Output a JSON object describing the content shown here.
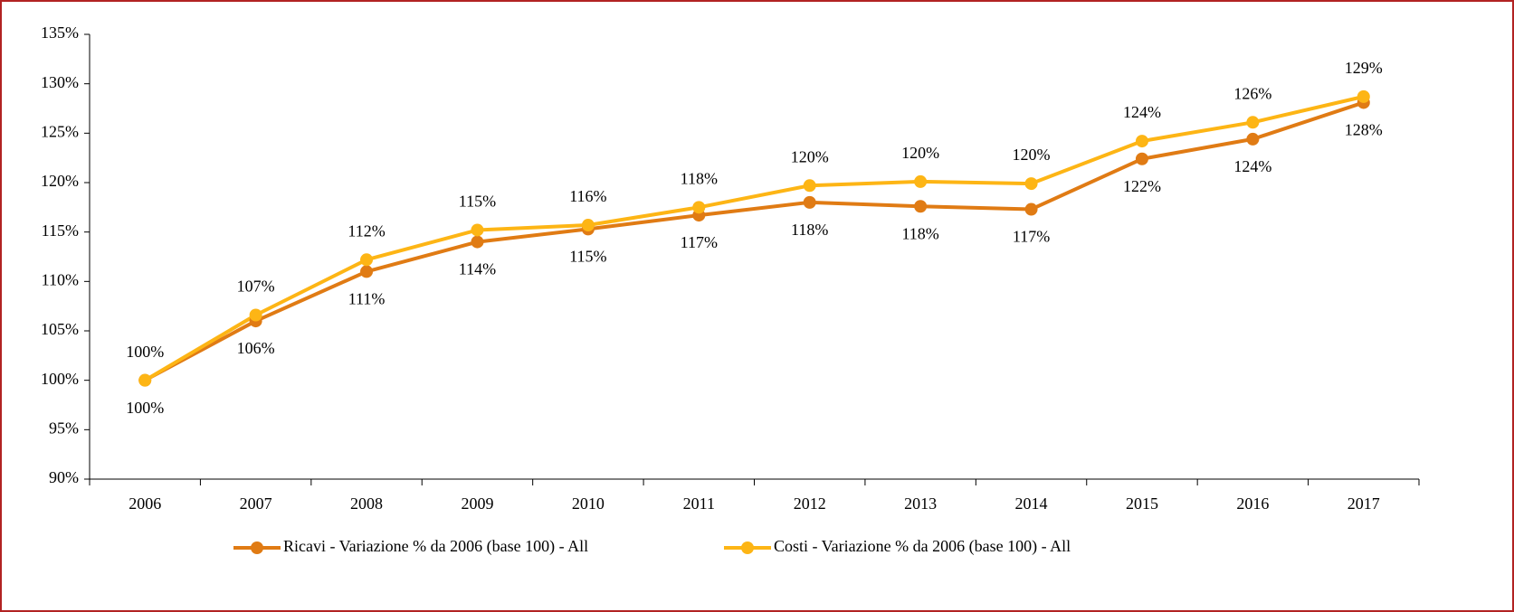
{
  "chart_data": {
    "type": "line",
    "categories": [
      "2006",
      "2007",
      "2008",
      "2009",
      "2010",
      "2011",
      "2012",
      "2013",
      "2014",
      "2015",
      "2016",
      "2017"
    ],
    "series": [
      {
        "name": "Ricavi - Variazione % da 2006 (base 100) - All",
        "color": "#e07b14",
        "values": [
          100,
          106.0,
          111.0,
          114.0,
          115.3,
          116.7,
          118.0,
          117.6,
          117.3,
          122.4,
          124.4,
          128.1
        ],
        "value_labels": [
          "100%",
          "106%",
          "111%",
          "114%",
          "115%",
          "117%",
          "118%",
          "118%",
          "117%",
          "122%",
          "124%",
          "128%"
        ]
      },
      {
        "name": "Costi - Variazione % da 2006 (base 100) - All",
        "color": "#fdb515",
        "values": [
          100,
          106.6,
          112.2,
          115.2,
          115.7,
          117.5,
          119.7,
          120.1,
          119.9,
          124.2,
          126.1,
          128.7
        ],
        "value_labels": [
          "100%",
          "107%",
          "112%",
          "115%",
          "116%",
          "118%",
          "120%",
          "120%",
          "120%",
          "124%",
          "126%",
          "129%"
        ]
      }
    ],
    "ylim": [
      90,
      135
    ],
    "yticks": [
      {
        "value": 90,
        "label": "90%"
      },
      {
        "value": 95,
        "label": "95%"
      },
      {
        "value": 100,
        "label": "100%"
      },
      {
        "value": 105,
        "label": "105%"
      },
      {
        "value": 110,
        "label": "110%"
      },
      {
        "value": 115,
        "label": "115%"
      },
      {
        "value": 120,
        "label": "120%"
      },
      {
        "value": 125,
        "label": "125%"
      },
      {
        "value": 130,
        "label": "130%"
      },
      {
        "value": 135,
        "label": "135%"
      }
    ],
    "legend": "bottom"
  }
}
